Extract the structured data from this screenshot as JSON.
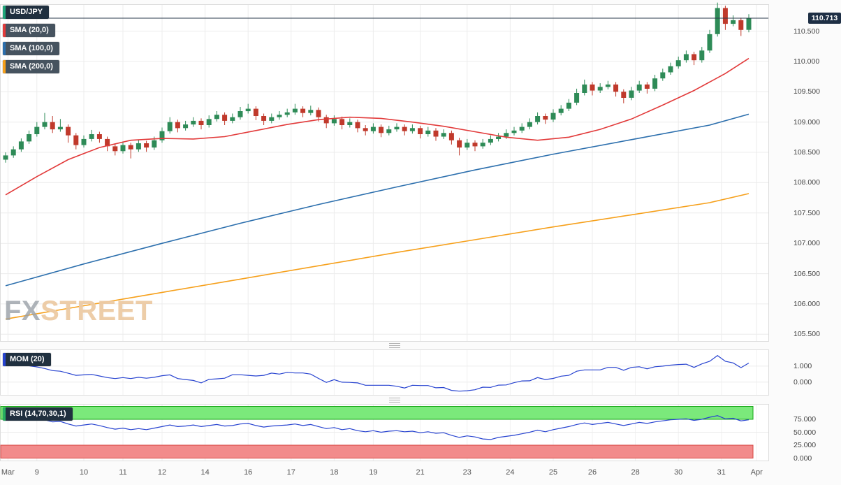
{
  "watermark": {
    "fx": "FX",
    "street": "STREET"
  },
  "legend": {
    "main": [
      {
        "label": "USD/JPY",
        "accent": "#1fa67a",
        "bg": "#20303f"
      },
      {
        "label": "SMA (20,0)",
        "accent": "#e23a3a",
        "bg": "#46535f"
      },
      {
        "label": "SMA (100,0)",
        "accent": "#2c6fad",
        "bg": "#46535f"
      },
      {
        "label": "SMA (200,0)",
        "accent": "#f6a01b",
        "bg": "#46535f"
      }
    ],
    "mom": {
      "label": "MOM (20)",
      "accent": "#2743d0",
      "bg": "#20303f"
    },
    "rsi": {
      "label": "RSI (14,70,30,1)",
      "accent": "#27ae60",
      "bg": "#20303f"
    }
  },
  "colors": {
    "up": "#2e8b57",
    "down": "#c0392b",
    "sma20": "#e23a3a",
    "sma100": "#2c6fad",
    "sma200": "#f6a01b",
    "indicator_line": "#2743d0",
    "price_line": "#2b3b4c",
    "badge_bg": "#1e2f45",
    "zone_green": "#7be97b",
    "zone_green_border": "#16a516",
    "zone_red": "#f28b8b",
    "zone_red_border": "#d64541",
    "grid": "#ececec"
  },
  "chart_data": {
    "type": "candlestick",
    "symbol": "USD/JPY",
    "last_price": 110.713,
    "last_price_label": "110.713",
    "ylim": [
      105.4,
      110.99
    ],
    "price_ticks": [
      {
        "v": 110.5,
        "label": "110.500"
      },
      {
        "v": 110.0,
        "label": "110.000"
      },
      {
        "v": 109.5,
        "label": "109.500"
      },
      {
        "v": 109.0,
        "label": "109.000"
      },
      {
        "v": 108.5,
        "label": "108.500"
      },
      {
        "v": 108.0,
        "label": "108.000"
      },
      {
        "v": 107.5,
        "label": "107.500"
      },
      {
        "v": 107.0,
        "label": "107.000"
      },
      {
        "v": 106.5,
        "label": "106.500"
      },
      {
        "v": 106.0,
        "label": "106.000"
      },
      {
        "v": 105.5,
        "label": "105.500"
      }
    ],
    "x_labels": [
      {
        "label": "Mar",
        "i": 0.3
      },
      {
        "label": "9",
        "i": 4
      },
      {
        "label": "10",
        "i": 10
      },
      {
        "label": "11",
        "i": 15
      },
      {
        "label": "12",
        "i": 20
      },
      {
        "label": "14",
        "i": 25.5
      },
      {
        "label": "16",
        "i": 31
      },
      {
        "label": "17",
        "i": 36.5
      },
      {
        "label": "18",
        "i": 42
      },
      {
        "label": "19",
        "i": 47
      },
      {
        "label": "21",
        "i": 53
      },
      {
        "label": "23",
        "i": 59
      },
      {
        "label": "24",
        "i": 64.5
      },
      {
        "label": "25",
        "i": 70
      },
      {
        "label": "26",
        "i": 75
      },
      {
        "label": "28",
        "i": 80.5
      },
      {
        "label": "30",
        "i": 86
      },
      {
        "label": "31",
        "i": 91.5
      },
      {
        "label": "Apr",
        "i": 96
      }
    ],
    "candles": [
      [
        108.38,
        108.5,
        108.33,
        108.45
      ],
      [
        108.45,
        108.6,
        108.41,
        108.55
      ],
      [
        108.55,
        108.73,
        108.51,
        108.68
      ],
      [
        108.68,
        108.86,
        108.64,
        108.8
      ],
      [
        108.8,
        109.0,
        108.76,
        108.92
      ],
      [
        108.92,
        109.15,
        108.88,
        109.0
      ],
      [
        109.0,
        109.1,
        108.82,
        108.88
      ],
      [
        108.88,
        109.05,
        108.84,
        108.92
      ],
      [
        108.92,
        108.96,
        108.66,
        108.78
      ],
      [
        108.78,
        108.82,
        108.55,
        108.62
      ],
      [
        108.62,
        108.78,
        108.58,
        108.72
      ],
      [
        108.72,
        108.87,
        108.68,
        108.8
      ],
      [
        108.8,
        108.84,
        108.66,
        108.72
      ],
      [
        108.72,
        108.76,
        108.52,
        108.6
      ],
      [
        108.6,
        108.65,
        108.45,
        108.52
      ],
      [
        108.52,
        108.68,
        108.48,
        108.62
      ],
      [
        108.62,
        108.66,
        108.4,
        108.55
      ],
      [
        108.55,
        108.71,
        108.51,
        108.65
      ],
      [
        108.65,
        108.69,
        108.51,
        108.58
      ],
      [
        108.58,
        108.76,
        108.54,
        108.7
      ],
      [
        108.7,
        108.91,
        108.66,
        108.85
      ],
      [
        108.85,
        109.08,
        108.81,
        109.0
      ],
      [
        109.0,
        109.04,
        108.83,
        108.9
      ],
      [
        108.9,
        109.02,
        108.86,
        108.96
      ],
      [
        108.96,
        109.08,
        108.92,
        109.02
      ],
      [
        109.02,
        109.06,
        108.88,
        108.95
      ],
      [
        108.95,
        109.11,
        108.91,
        109.05
      ],
      [
        109.05,
        109.18,
        109.01,
        109.12
      ],
      [
        109.12,
        109.16,
        108.95,
        109.02
      ],
      [
        109.02,
        109.14,
        108.98,
        109.08
      ],
      [
        109.08,
        109.25,
        109.04,
        109.18
      ],
      [
        109.18,
        109.3,
        109.14,
        109.22
      ],
      [
        109.22,
        109.26,
        109.03,
        109.1
      ],
      [
        109.1,
        109.14,
        108.95,
        109.02
      ],
      [
        109.02,
        109.14,
        108.98,
        109.08
      ],
      [
        109.08,
        109.18,
        109.04,
        109.12
      ],
      [
        109.12,
        109.22,
        109.08,
        109.16
      ],
      [
        109.16,
        109.3,
        109.12,
        109.22
      ],
      [
        109.22,
        109.26,
        109.08,
        109.15
      ],
      [
        109.15,
        109.27,
        109.11,
        109.2
      ],
      [
        109.2,
        109.24,
        109.01,
        109.08
      ],
      [
        109.08,
        109.12,
        108.9,
        108.98
      ],
      [
        108.98,
        109.11,
        108.94,
        109.05
      ],
      [
        109.05,
        109.09,
        108.88,
        108.95
      ],
      [
        108.95,
        109.06,
        108.91,
        109.0
      ],
      [
        109.0,
        109.04,
        108.83,
        108.9
      ],
      [
        108.9,
        108.95,
        108.78,
        108.85
      ],
      [
        108.85,
        108.98,
        108.81,
        108.92
      ],
      [
        108.92,
        108.96,
        108.75,
        108.82
      ],
      [
        108.82,
        108.94,
        108.78,
        108.88
      ],
      [
        108.88,
        108.98,
        108.84,
        108.92
      ],
      [
        108.92,
        108.96,
        108.78,
        108.85
      ],
      [
        108.85,
        108.96,
        108.81,
        108.9
      ],
      [
        108.9,
        108.94,
        108.73,
        108.8
      ],
      [
        108.8,
        108.92,
        108.76,
        108.86
      ],
      [
        108.86,
        108.9,
        108.69,
        108.76
      ],
      [
        108.76,
        108.88,
        108.72,
        108.82
      ],
      [
        108.82,
        108.86,
        108.63,
        108.7
      ],
      [
        108.7,
        108.74,
        108.45,
        108.58
      ],
      [
        108.58,
        108.72,
        108.54,
        108.66
      ],
      [
        108.66,
        108.7,
        108.52,
        108.6
      ],
      [
        108.6,
        108.72,
        108.56,
        108.66
      ],
      [
        108.66,
        108.78,
        108.62,
        108.72
      ],
      [
        108.72,
        108.82,
        108.68,
        108.76
      ],
      [
        108.76,
        108.88,
        108.72,
        108.82
      ],
      [
        108.82,
        108.92,
        108.78,
        108.86
      ],
      [
        108.86,
        108.98,
        108.82,
        108.92
      ],
      [
        108.92,
        109.06,
        108.88,
        109.0
      ],
      [
        109.0,
        109.16,
        108.96,
        109.1
      ],
      [
        109.1,
        109.14,
        108.97,
        109.04
      ],
      [
        109.04,
        109.21,
        109.0,
        109.15
      ],
      [
        109.15,
        109.28,
        109.11,
        109.22
      ],
      [
        109.22,
        109.38,
        109.18,
        109.32
      ],
      [
        109.32,
        109.55,
        109.28,
        109.48
      ],
      [
        109.48,
        109.7,
        109.44,
        109.62
      ],
      [
        109.62,
        109.66,
        109.44,
        109.52
      ],
      [
        109.52,
        109.64,
        109.48,
        109.58
      ],
      [
        109.58,
        109.68,
        109.54,
        109.62
      ],
      [
        109.62,
        109.66,
        109.42,
        109.5
      ],
      [
        109.5,
        109.54,
        109.31,
        109.4
      ],
      [
        109.4,
        109.58,
        109.36,
        109.52
      ],
      [
        109.52,
        109.68,
        109.48,
        109.62
      ],
      [
        109.62,
        109.66,
        109.47,
        109.55
      ],
      [
        109.55,
        109.78,
        109.51,
        109.72
      ],
      [
        109.72,
        109.88,
        109.68,
        109.82
      ],
      [
        109.82,
        109.98,
        109.78,
        109.92
      ],
      [
        109.92,
        110.08,
        109.88,
        110.02
      ],
      [
        110.02,
        110.18,
        109.98,
        110.12
      ],
      [
        110.12,
        110.16,
        109.94,
        110.02
      ],
      [
        110.02,
        110.24,
        109.98,
        110.18
      ],
      [
        110.18,
        110.52,
        110.14,
        110.45
      ],
      [
        110.45,
        110.97,
        110.41,
        110.88
      ],
      [
        110.88,
        110.92,
        110.52,
        110.62
      ],
      [
        110.62,
        110.76,
        110.58,
        110.68
      ],
      [
        110.68,
        110.72,
        110.42,
        110.52
      ],
      [
        110.52,
        110.78,
        110.48,
        110.713
      ]
    ],
    "sma20": [
      [
        0,
        107.8
      ],
      [
        4,
        108.1
      ],
      [
        8,
        108.38
      ],
      [
        12,
        108.58
      ],
      [
        16,
        108.7
      ],
      [
        20,
        108.73
      ],
      [
        24,
        108.72
      ],
      [
        28,
        108.76
      ],
      [
        32,
        108.86
      ],
      [
        36,
        108.96
      ],
      [
        40,
        109.04
      ],
      [
        44,
        109.08
      ],
      [
        48,
        109.06
      ],
      [
        52,
        109.0
      ],
      [
        56,
        108.93
      ],
      [
        60,
        108.84
      ],
      [
        64,
        108.75
      ],
      [
        68,
        108.7
      ],
      [
        72,
        108.75
      ],
      [
        76,
        108.88
      ],
      [
        80,
        109.05
      ],
      [
        84,
        109.28
      ],
      [
        88,
        109.52
      ],
      [
        92,
        109.8
      ],
      [
        95,
        110.05
      ]
    ],
    "sma100": [
      [
        0,
        106.3
      ],
      [
        10,
        106.66
      ],
      [
        20,
        107.0
      ],
      [
        30,
        107.33
      ],
      [
        40,
        107.64
      ],
      [
        50,
        107.93
      ],
      [
        60,
        108.21
      ],
      [
        70,
        108.47
      ],
      [
        80,
        108.71
      ],
      [
        90,
        108.95
      ],
      [
        95,
        109.13
      ]
    ],
    "sma200": [
      [
        0,
        105.75
      ],
      [
        10,
        105.97
      ],
      [
        20,
        106.19
      ],
      [
        30,
        106.41
      ],
      [
        40,
        106.63
      ],
      [
        50,
        106.85
      ],
      [
        60,
        107.06
      ],
      [
        70,
        107.27
      ],
      [
        80,
        107.47
      ],
      [
        90,
        107.67
      ],
      [
        95,
        107.82
      ]
    ],
    "mom": {
      "ticks": [
        {
          "v": 1,
          "label": "1.000"
        },
        {
          "v": 0,
          "label": "0.000"
        }
      ],
      "range": [
        -0.8,
        2.0
      ],
      "values": [
        1.25,
        1.18,
        1.1,
        1.02,
        0.95,
        0.85,
        0.72,
        0.68,
        0.55,
        0.42,
        0.45,
        0.48,
        0.38,
        0.28,
        0.22,
        0.28,
        0.22,
        0.3,
        0.24,
        0.3,
        0.4,
        0.45,
        0.22,
        0.16,
        0.1,
        -0.05,
        0.17,
        0.2,
        0.24,
        0.46,
        0.46,
        0.42,
        0.38,
        0.42,
        0.56,
        0.5,
        0.61,
        0.57,
        0.57,
        0.5,
        0.23,
        -0.02,
        0.15,
        -0.01,
        -0.02,
        -0.05,
        -0.2,
        -0.2,
        -0.2,
        -0.2,
        -0.26,
        -0.37,
        -0.2,
        -0.22,
        -0.22,
        -0.36,
        -0.34,
        -0.52,
        -0.57,
        -0.54,
        -0.48,
        -0.32,
        -0.33,
        -0.19,
        -0.18,
        -0.04,
        0.07,
        0.08,
        0.28,
        0.16,
        0.23,
        0.37,
        0.42,
        0.68,
        0.76,
        0.76,
        0.76,
        0.92,
        0.92,
        0.74,
        0.92,
        0.96,
        0.83,
        0.96,
        1.0,
        1.06,
        1.1,
        1.12,
        0.92,
        1.14,
        1.3,
        1.66,
        1.3,
        1.2,
        0.9,
        1.19
      ]
    },
    "rsi": {
      "ticks": [
        {
          "v": 75,
          "label": "75.000"
        },
        {
          "v": 50,
          "label": "50.000"
        },
        {
          "v": 25,
          "label": "25.000"
        },
        {
          "v": 0,
          "label": "0.000"
        }
      ],
      "overbought": 75,
      "oversold": 25,
      "range": [
        0,
        100
      ],
      "values": [
        73,
        75,
        77,
        78,
        76,
        74,
        70,
        71,
        66,
        62,
        64,
        66,
        63,
        59,
        56,
        58,
        55,
        57,
        55,
        58,
        61,
        64,
        61,
        62,
        64,
        61,
        63,
        65,
        62,
        63,
        66,
        67,
        63,
        60,
        62,
        63,
        64,
        66,
        63,
        65,
        61,
        57,
        59,
        55,
        57,
        53,
        51,
        53,
        50,
        52,
        53,
        51,
        52,
        49,
        51,
        48,
        49,
        44,
        40,
        43,
        41,
        37,
        36,
        40,
        42,
        44,
        47,
        50,
        54,
        51,
        55,
        58,
        61,
        65,
        68,
        65,
        67,
        69,
        66,
        63,
        66,
        69,
        67,
        70,
        72,
        74,
        75,
        76,
        73,
        75,
        79,
        82,
        76,
        77,
        72,
        74
      ]
    }
  }
}
